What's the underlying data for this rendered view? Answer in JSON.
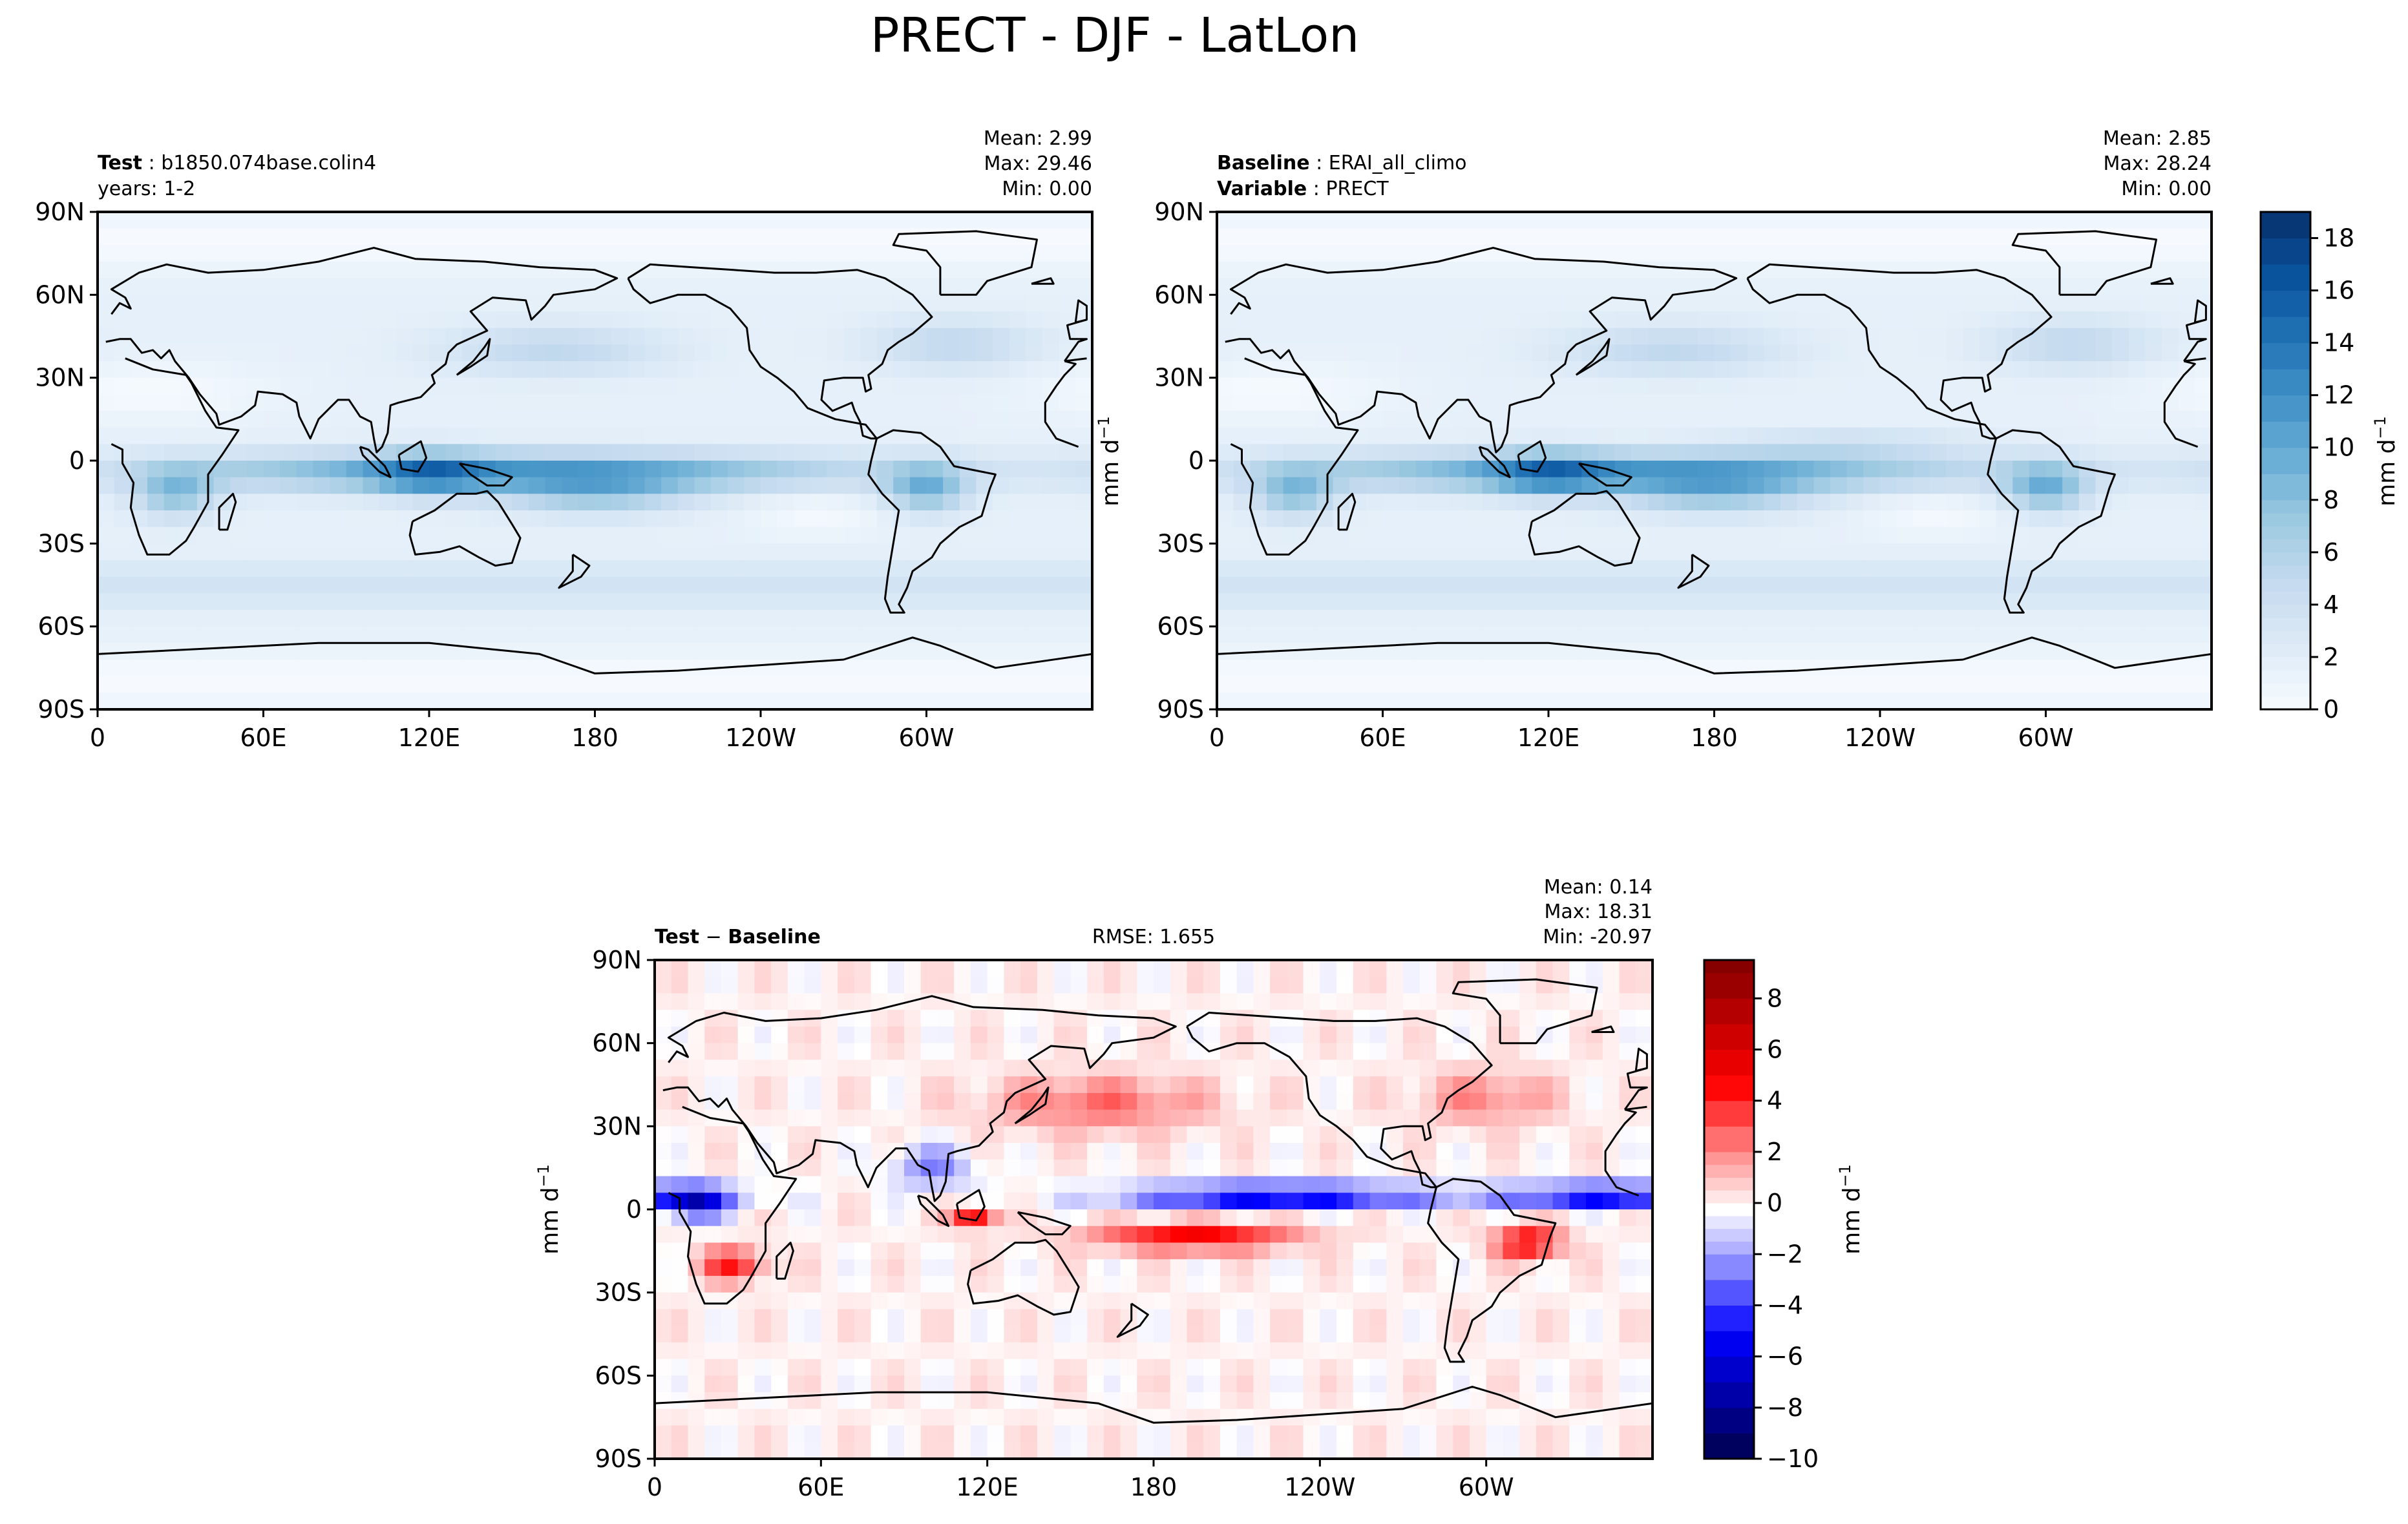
{
  "figure": {
    "title": "PRECT - DJF - LatLon"
  },
  "chart_data": [
    {
      "type": "heatmap",
      "panel": "test",
      "header": {
        "label_bold": "Test",
        "label_value": "b1850.074base.colin4",
        "line2": "years: 1-2",
        "stats": [
          "Mean:  2.99",
          "Max: 29.46",
          "Min:  0.00"
        ]
      },
      "stats": {
        "mean": 2.99,
        "max": 29.46,
        "min": 0.0
      },
      "x_ticks": [
        "0",
        "60E",
        "120E",
        "180",
        "120W",
        "60W"
      ],
      "y_ticks": [
        "90N",
        "60N",
        "30N",
        "0",
        "30S",
        "60S",
        "90S"
      ],
      "xlim": [
        0,
        360
      ],
      "ylim": [
        -90,
        90
      ],
      "colormap": "Blues"
    },
    {
      "type": "heatmap",
      "panel": "reference",
      "header": {
        "label_bold": "Baseline",
        "label_value": "ERAI_all_climo",
        "line2_bold": "Variable",
        "line2_value": "PRECT",
        "stats": [
          "Mean:  2.85",
          "Max: 28.24",
          "Min:  0.00"
        ]
      },
      "stats": {
        "mean": 2.85,
        "max": 28.24,
        "min": 0.0
      },
      "x_ticks": [
        "0",
        "60E",
        "120E",
        "180",
        "120W",
        "60W"
      ],
      "y_ticks": [
        "90N",
        "60N",
        "30N",
        "0",
        "30S",
        "60S",
        "90S"
      ],
      "xlim": [
        0,
        360
      ],
      "ylim": [
        -90,
        90
      ],
      "colormap": "Blues",
      "colorbar": {
        "label": "mm d",
        "label_sup": "−1",
        "ticks": [
          "0",
          "2",
          "4",
          "6",
          "8",
          "10",
          "12",
          "14",
          "16",
          "18"
        ],
        "range": [
          0,
          19
        ],
        "levels": [
          0,
          0.5,
          1,
          1.5,
          2,
          2.5,
          3,
          3.5,
          4,
          4.5,
          5,
          5.5,
          6,
          6.5,
          7,
          7.5,
          8,
          9,
          10,
          11,
          12,
          13,
          14,
          15,
          16,
          17,
          18,
          19
        ]
      }
    },
    {
      "type": "heatmap",
      "panel": "difference",
      "header": {
        "label_bold_1": "Test",
        "label_sep": " − ",
        "label_bold_2": "Baseline",
        "rmse": "RMSE: 1.655",
        "stats": [
          "Mean:  0.14",
          "Max: 18.31",
          "Min: -20.97"
        ]
      },
      "stats": {
        "mean": 0.14,
        "max": 18.31,
        "min": -20.97,
        "rmse": 1.655
      },
      "x_ticks": [
        "0",
        "60E",
        "120E",
        "180",
        "120W",
        "60W"
      ],
      "y_ticks": [
        "90N",
        "60N",
        "30N",
        "0",
        "30S",
        "60S",
        "90S"
      ],
      "xlim": [
        0,
        360
      ],
      "ylim": [
        -90,
        90
      ],
      "colormap": "seismic",
      "colorbar": {
        "label": "mm d",
        "label_sup": "−1",
        "ticks": [
          "−10",
          "−8",
          "−6",
          "−4",
          "−2",
          "0",
          "2",
          "4",
          "6",
          "8"
        ],
        "range": [
          -10,
          9.5
        ],
        "levels": [
          -10,
          -9,
          -8,
          -7,
          -6,
          -5,
          -4,
          -3,
          -2,
          -1.5,
          -1,
          -0.5,
          0,
          0.5,
          1,
          1.5,
          2,
          3,
          4,
          5,
          6,
          7,
          8,
          9,
          9.5
        ]
      }
    }
  ],
  "axis_unit_label": "mm d",
  "axis_unit_sup": "−1",
  "colors": {
    "frame": "#000000",
    "coast": "#000000",
    "blues_low": "#f7fbff",
    "blues_high": "#08306b",
    "diff_low": "#00004c",
    "diff_mid": "#ffffff",
    "diff_high": "#800000"
  }
}
